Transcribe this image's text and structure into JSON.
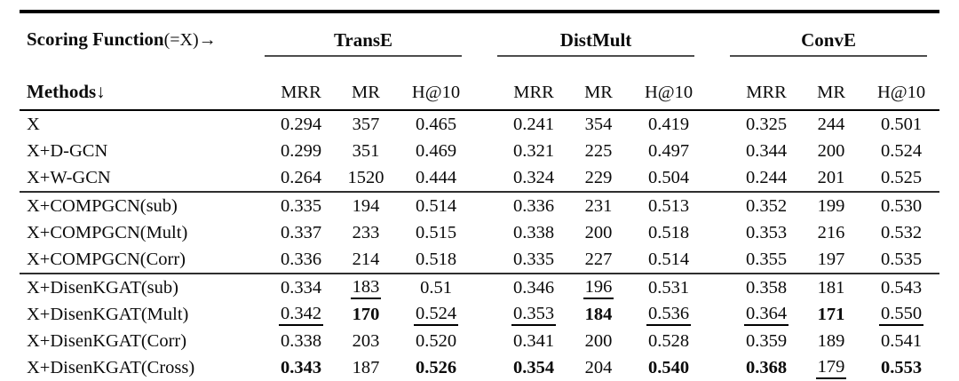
{
  "header": {
    "corner_bold": "Scoring Function",
    "corner_suffix": "(=X)→",
    "methods_bold": "Methods",
    "methods_arrow": "↓",
    "groups": [
      {
        "name": "TransE"
      },
      {
        "name": "DistMult"
      },
      {
        "name": "ConvE"
      }
    ],
    "metrics": [
      "MRR",
      "MR",
      "H@10"
    ]
  },
  "row_groups": [
    {
      "rows": [
        {
          "method": "X",
          "cells": [
            {
              "t": "0.294",
              "s": "n"
            },
            {
              "t": "357",
              "s": "n"
            },
            {
              "t": "0.465",
              "s": "n"
            },
            {
              "t": "0.241",
              "s": "n"
            },
            {
              "t": "354",
              "s": "n"
            },
            {
              "t": "0.419",
              "s": "n"
            },
            {
              "t": "0.325",
              "s": "n"
            },
            {
              "t": "244",
              "s": "n"
            },
            {
              "t": "0.501",
              "s": "n"
            }
          ]
        },
        {
          "method": "X+D-GCN",
          "cells": [
            {
              "t": "0.299",
              "s": "n"
            },
            {
              "t": "351",
              "s": "n"
            },
            {
              "t": "0.469",
              "s": "n"
            },
            {
              "t": "0.321",
              "s": "n"
            },
            {
              "t": "225",
              "s": "n"
            },
            {
              "t": "0.497",
              "s": "n"
            },
            {
              "t": "0.344",
              "s": "n"
            },
            {
              "t": "200",
              "s": "n"
            },
            {
              "t": "0.524",
              "s": "n"
            }
          ]
        },
        {
          "method": "X+W-GCN",
          "cells": [
            {
              "t": "0.264",
              "s": "n"
            },
            {
              "t": "1520",
              "s": "n"
            },
            {
              "t": "0.444",
              "s": "n"
            },
            {
              "t": "0.324",
              "s": "n"
            },
            {
              "t": "229",
              "s": "n"
            },
            {
              "t": "0.504",
              "s": "n"
            },
            {
              "t": "0.244",
              "s": "n"
            },
            {
              "t": "201",
              "s": "n"
            },
            {
              "t": "0.525",
              "s": "n"
            }
          ]
        }
      ]
    },
    {
      "rows": [
        {
          "method": "X+COMPGCN(sub)",
          "cells": [
            {
              "t": "0.335",
              "s": "n"
            },
            {
              "t": "194",
              "s": "n"
            },
            {
              "t": "0.514",
              "s": "n"
            },
            {
              "t": "0.336",
              "s": "n"
            },
            {
              "t": "231",
              "s": "n"
            },
            {
              "t": "0.513",
              "s": "n"
            },
            {
              "t": "0.352",
              "s": "n"
            },
            {
              "t": "199",
              "s": "n"
            },
            {
              "t": "0.530",
              "s": "n"
            }
          ]
        },
        {
          "method": "X+COMPGCN(Mult)",
          "cells": [
            {
              "t": "0.337",
              "s": "n"
            },
            {
              "t": "233",
              "s": "n"
            },
            {
              "t": "0.515",
              "s": "n"
            },
            {
              "t": "0.338",
              "s": "n"
            },
            {
              "t": "200",
              "s": "n"
            },
            {
              "t": "0.518",
              "s": "n"
            },
            {
              "t": "0.353",
              "s": "n"
            },
            {
              "t": "216",
              "s": "n"
            },
            {
              "t": "0.532",
              "s": "n"
            }
          ]
        },
        {
          "method": "X+COMPGCN(Corr)",
          "cells": [
            {
              "t": "0.336",
              "s": "n"
            },
            {
              "t": "214",
              "s": "n"
            },
            {
              "t": "0.518",
              "s": "n"
            },
            {
              "t": "0.335",
              "s": "n"
            },
            {
              "t": "227",
              "s": "n"
            },
            {
              "t": "0.514",
              "s": "n"
            },
            {
              "t": "0.355",
              "s": "n"
            },
            {
              "t": "197",
              "s": "n"
            },
            {
              "t": "0.535",
              "s": "n"
            }
          ]
        }
      ]
    },
    {
      "rows": [
        {
          "method": "X+DisenKGAT(sub)",
          "cells": [
            {
              "t": "0.334",
              "s": "n"
            },
            {
              "t": "183",
              "s": "u"
            },
            {
              "t": "0.51",
              "s": "n"
            },
            {
              "t": "0.346",
              "s": "n"
            },
            {
              "t": "196",
              "s": "u"
            },
            {
              "t": "0.531",
              "s": "n"
            },
            {
              "t": "0.358",
              "s": "n"
            },
            {
              "t": "181",
              "s": "n"
            },
            {
              "t": "0.543",
              "s": "n"
            }
          ]
        },
        {
          "method": "X+DisenKGAT(Mult)",
          "cells": [
            {
              "t": "0.342",
              "s": "u"
            },
            {
              "t": "170",
              "s": "b"
            },
            {
              "t": "0.524",
              "s": "u"
            },
            {
              "t": "0.353",
              "s": "u"
            },
            {
              "t": "184",
              "s": "b"
            },
            {
              "t": "0.536",
              "s": "u"
            },
            {
              "t": "0.364",
              "s": "u"
            },
            {
              "t": "171",
              "s": "b"
            },
            {
              "t": "0.550",
              "s": "u"
            }
          ]
        },
        {
          "method": "X+DisenKGAT(Corr)",
          "cells": [
            {
              "t": "0.338",
              "s": "n"
            },
            {
              "t": "203",
              "s": "n"
            },
            {
              "t": "0.520",
              "s": "n"
            },
            {
              "t": "0.341",
              "s": "n"
            },
            {
              "t": "200",
              "s": "n"
            },
            {
              "t": "0.528",
              "s": "n"
            },
            {
              "t": "0.359",
              "s": "n"
            },
            {
              "t": "189",
              "s": "n"
            },
            {
              "t": "0.541",
              "s": "n"
            }
          ]
        },
        {
          "method": "X+DisenKGAT(Cross)",
          "cells": [
            {
              "t": "0.343",
              "s": "b"
            },
            {
              "t": "187",
              "s": "n"
            },
            {
              "t": "0.526",
              "s": "b"
            },
            {
              "t": "0.354",
              "s": "b"
            },
            {
              "t": "204",
              "s": "n"
            },
            {
              "t": "0.540",
              "s": "b"
            },
            {
              "t": "0.368",
              "s": "b"
            },
            {
              "t": "179",
              "s": "u"
            },
            {
              "t": "0.553",
              "s": "b"
            }
          ]
        }
      ]
    }
  ]
}
